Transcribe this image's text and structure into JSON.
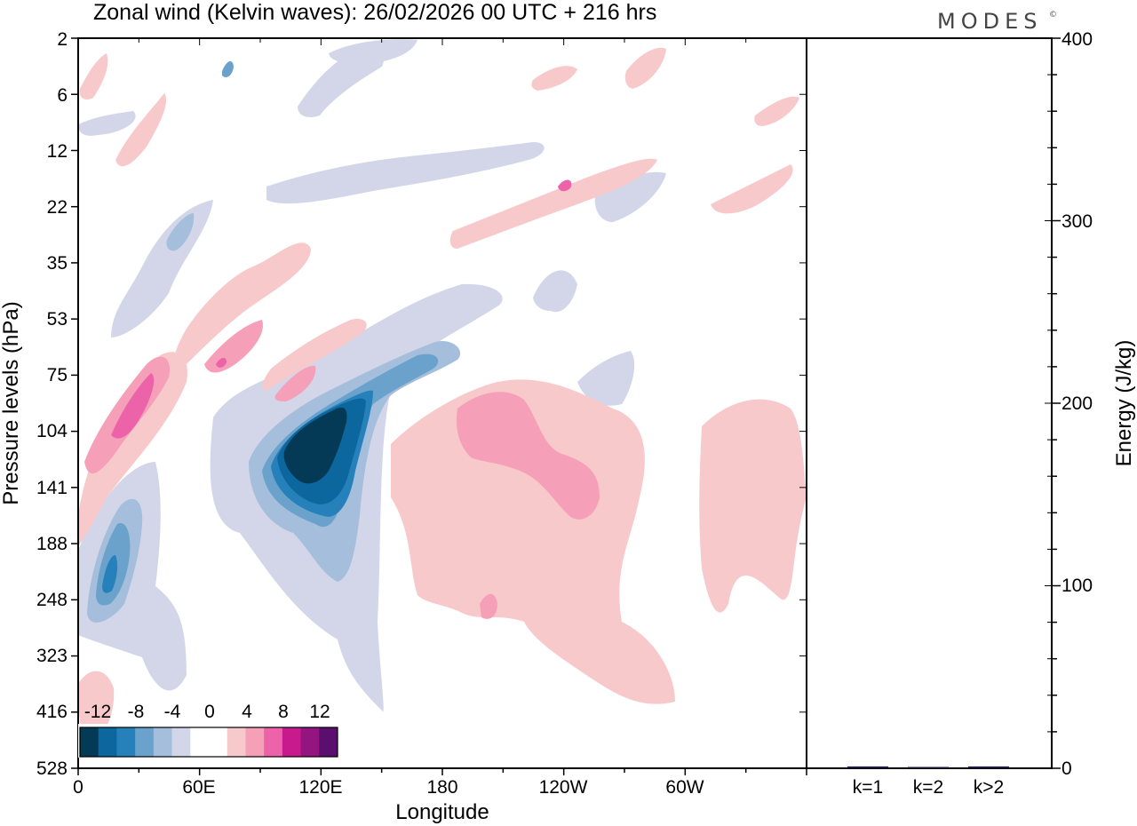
{
  "header": {
    "title": "Zonal wind (Kelvin waves):  26/02/2026  00 UTC  + 216 hrs",
    "logo": "MODES",
    "logo_mark": "©"
  },
  "chart_data": [
    {
      "type": "heatmap",
      "title": "Zonal wind (Kelvin waves):  26/02/2026  00 UTC  + 216 hrs",
      "xlabel": "Longitude",
      "ylabel": "Pressure levels (hPa)",
      "x_tick_labels": [
        "0",
        "60E",
        "120E",
        "180",
        "120W",
        "60W"
      ],
      "y_tick_labels": [
        "2",
        "6",
        "12",
        "22",
        "35",
        "53",
        "75",
        "104",
        "141",
        "188",
        "248",
        "323",
        "416",
        "528"
      ],
      "y_scale": "log-like, top 2 hPa to bottom 528 hPa",
      "xlim_degrees": [
        0,
        360
      ],
      "colorbar": {
        "tick_labels": [
          "-12",
          "-8",
          "-4",
          "0",
          "4",
          "8",
          "12"
        ],
        "colors": [
          "#053a57",
          "#0d679f",
          "#2681bb",
          "#6ba2cc",
          "#a5bedc",
          "#d2d6e8",
          "#ffffff",
          "#ffffff",
          "#f8c9cb",
          "#f5a0b8",
          "#ec63a9",
          "#c8198d",
          "#941580",
          "#5a0e6e"
        ],
        "placement": "bottom-left, inside plot"
      },
      "features": [
        {
          "sign": "negative",
          "strength": "strongest (<-12)",
          "longitude": "~95E-125E",
          "pressure": "~104-150 hPa"
        },
        {
          "sign": "negative",
          "strength": "moderate",
          "longitude": "~5E-30E",
          "pressure": "~170-280 hPa"
        },
        {
          "sign": "positive",
          "strength": "moderate (~8)",
          "longitude": "~10E-40E",
          "pressure": "~75-130 hPa"
        },
        {
          "sign": "positive",
          "strength": "weak to moderate",
          "longitude": "~160W-110W",
          "pressure": "~90-400 hPa"
        }
      ]
    },
    {
      "type": "bar",
      "categories": [
        "k=1",
        "k=2",
        "k>2"
      ],
      "values": [
        1,
        0.5,
        1
      ],
      "ylabel": "Energy (J/kg)",
      "ylim": [
        0,
        400
      ],
      "y_tick_labels": [
        "0",
        "100",
        "200",
        "300",
        "400"
      ],
      "bar_color": "#1a1a4a"
    }
  ]
}
